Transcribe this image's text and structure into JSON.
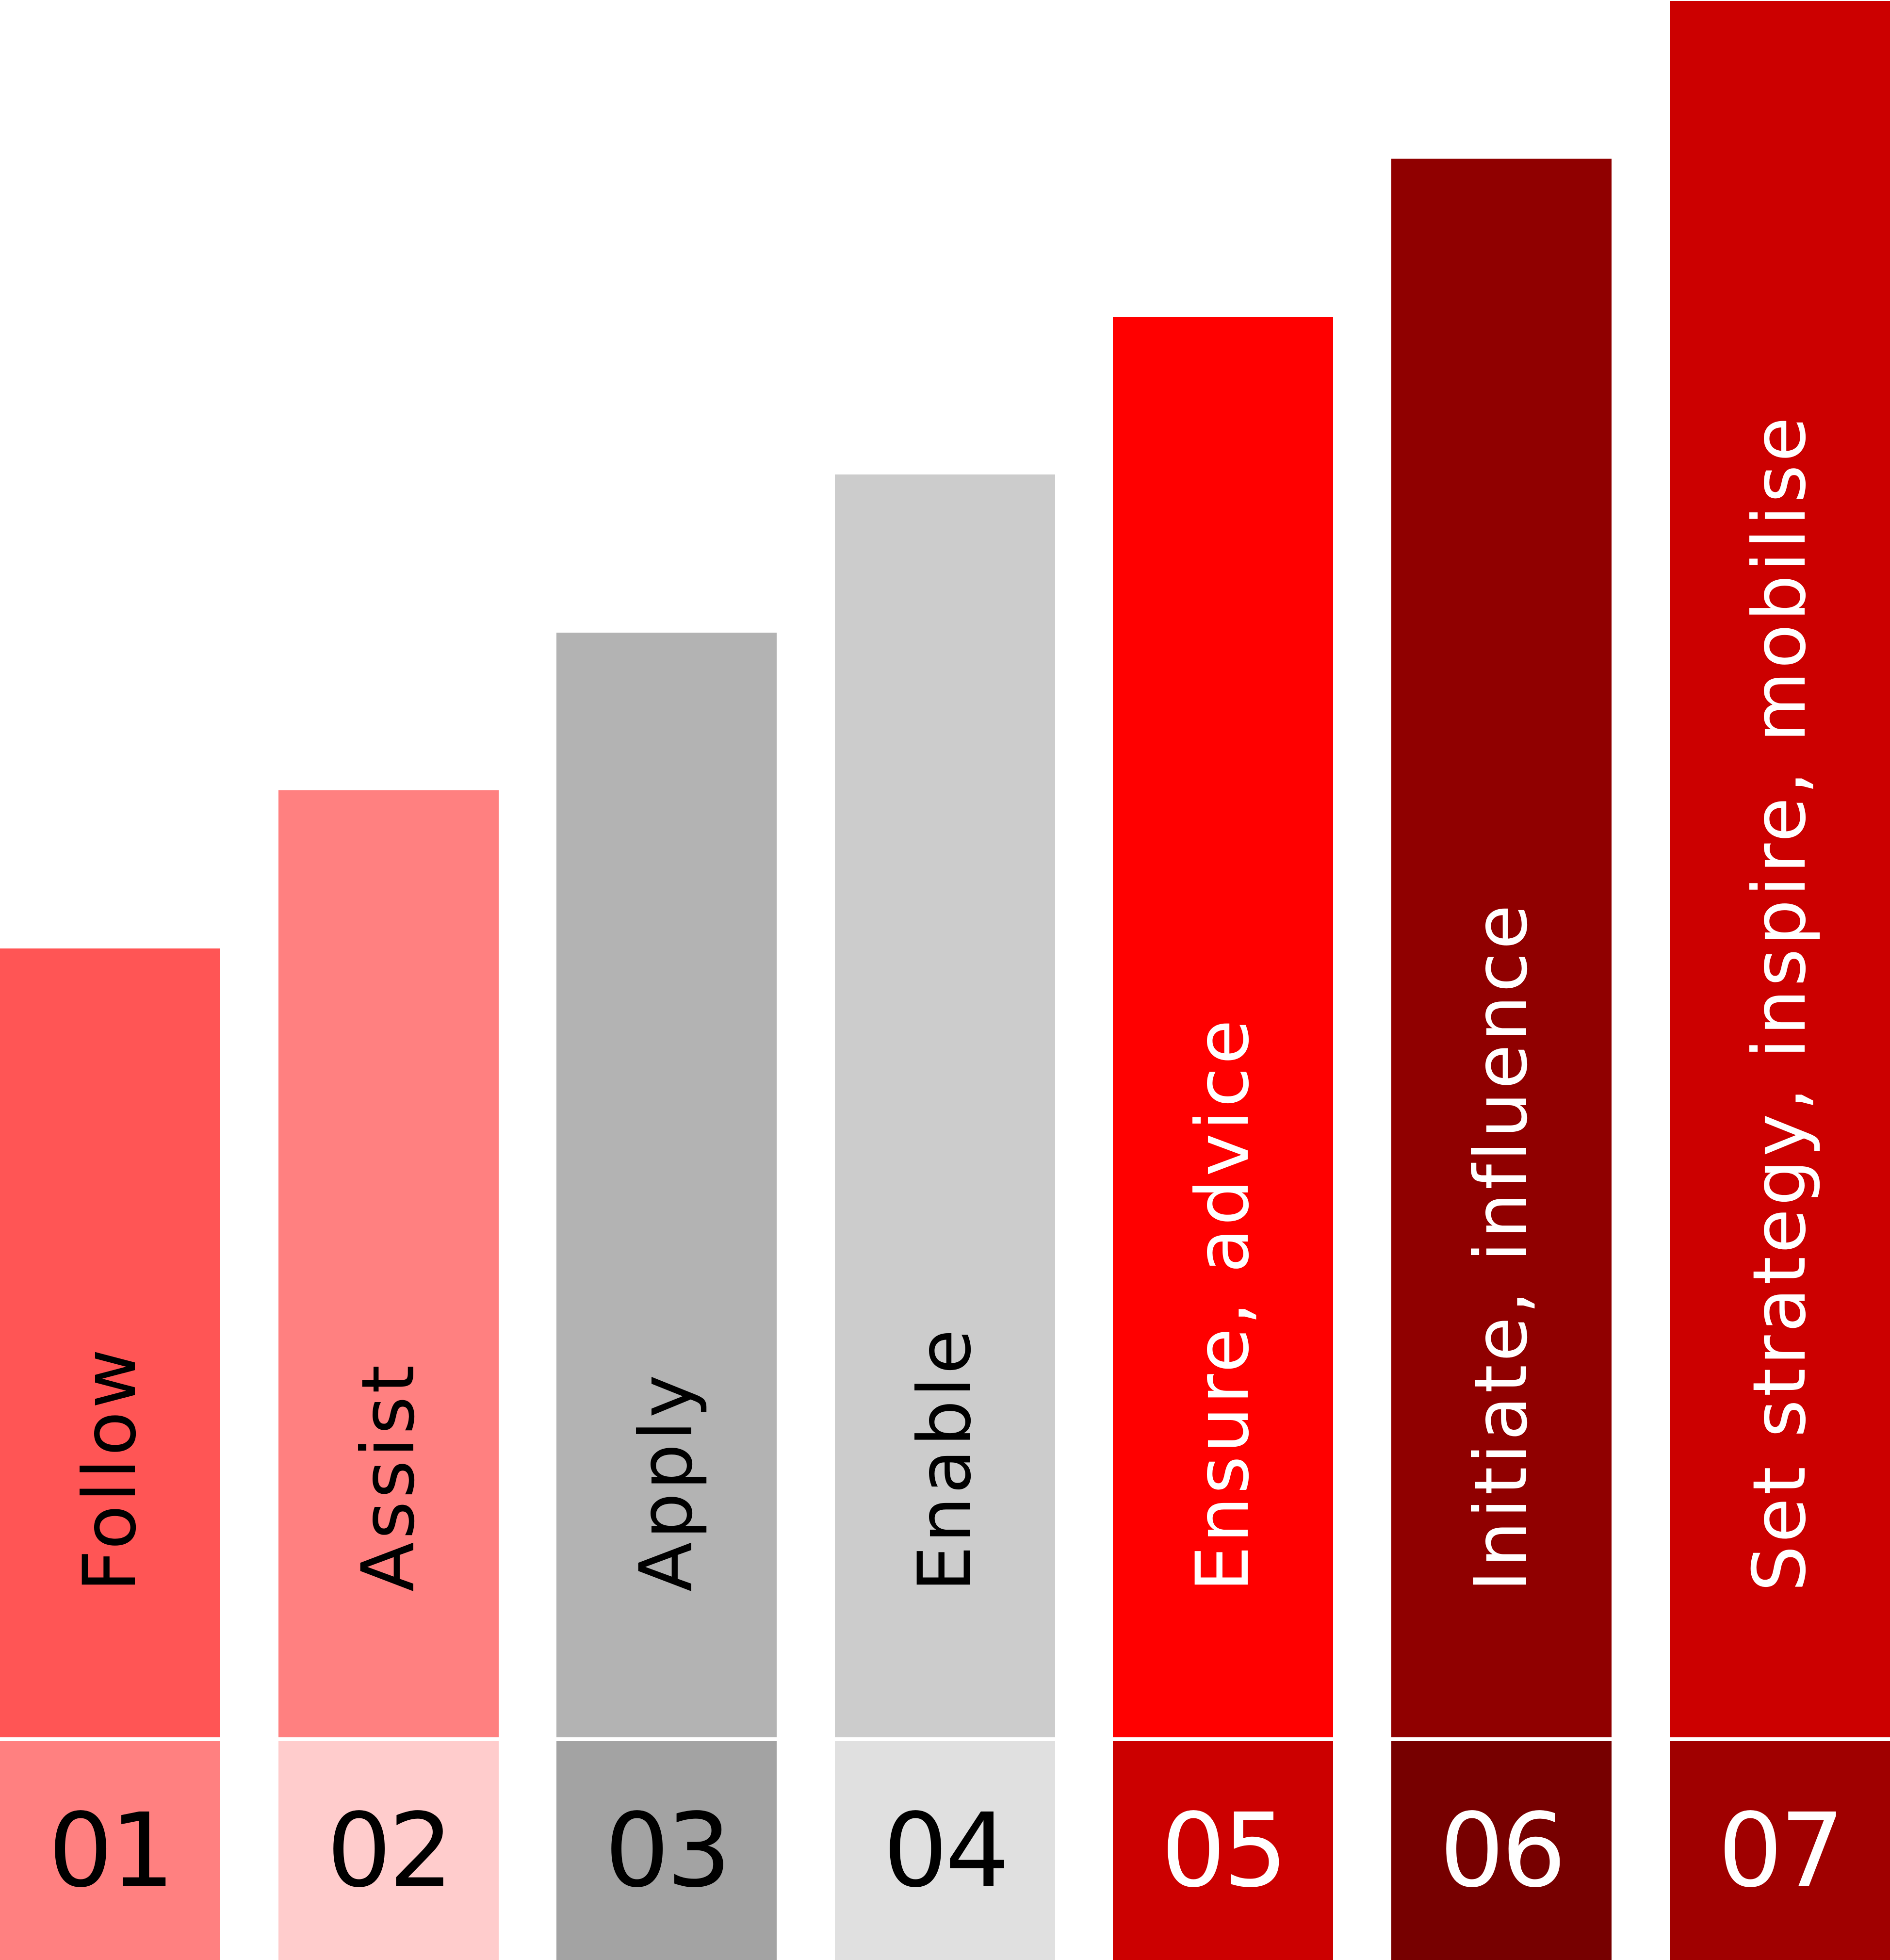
{
  "levels": [
    {
      "number": "01",
      "label": "Follow",
      "bar_color": "#ff5555",
      "box_color": "#ff8080",
      "text_color": "#000000",
      "level": 1
    },
    {
      "number": "02",
      "label": "Assist",
      "bar_color": "#ff8080",
      "box_color": "#ffcccc",
      "text_color": "#000000",
      "level": 2
    },
    {
      "number": "03",
      "label": "Apply",
      "bar_color": "#b3b3b3",
      "box_color": "#a3a3a3",
      "text_color": "#000000",
      "level": 3
    },
    {
      "number": "04",
      "label": "Enable",
      "bar_color": "#cccccc",
      "box_color": "#e0e0e0",
      "text_color": "#000000",
      "level": 4
    },
    {
      "number": "05",
      "label": "Ensure, advice",
      "bar_color": "#ff0000",
      "box_color": "#cc0000",
      "text_color": "#ffffff",
      "level": 5
    },
    {
      "number": "06",
      "label": "Initiate, influence",
      "bar_color": "#900000",
      "box_color": "#770000",
      "text_color": "#ffffff",
      "level": 6
    },
    {
      "number": "07",
      "label": "Set strategy, inspire, mobilise",
      "bar_color": "#cc0000",
      "box_color": "#a00000",
      "text_color": "#ffffff",
      "level": 7
    }
  ]
}
